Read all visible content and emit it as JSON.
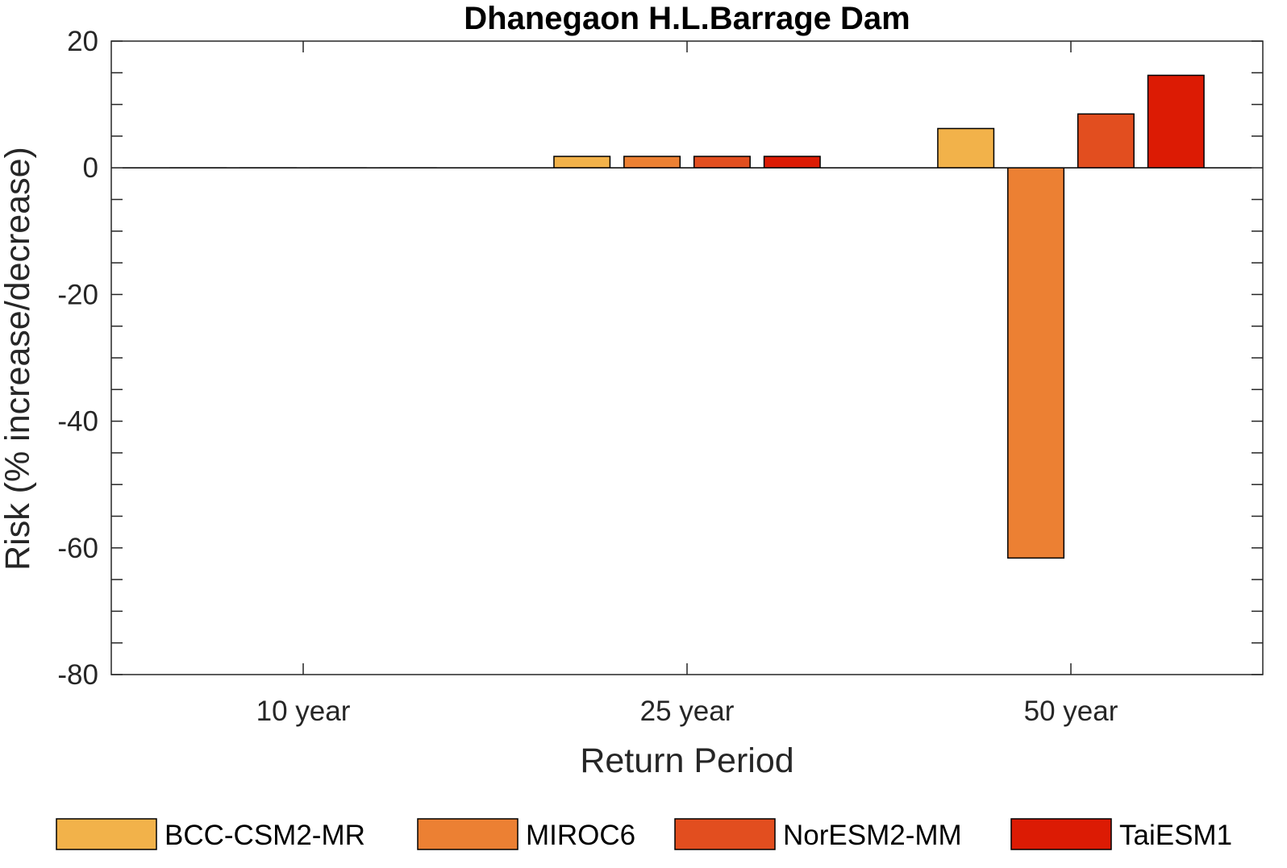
{
  "chart_data": {
    "type": "bar",
    "title": "Dhanegaon H.L.Barrage Dam",
    "xlabel": "Return Period",
    "ylabel": "Risk (% increase/decrease)",
    "categories": [
      "10 year",
      "25 year",
      "50 year"
    ],
    "ylim": [
      -80,
      20
    ],
    "yticks": [
      20,
      0,
      -20,
      -40,
      -60,
      -80
    ],
    "grid": false,
    "legend_position": "bottom",
    "series": [
      {
        "name": "BCC-CSM2-MR",
        "color": "#f2b24a",
        "values": [
          0,
          1.8,
          6.2
        ]
      },
      {
        "name": "MIROC6",
        "color": "#ec8033",
        "values": [
          0,
          1.8,
          -61.6
        ]
      },
      {
        "name": "NorESM2-MM",
        "color": "#e24e1f",
        "values": [
          0,
          1.8,
          8.5
        ]
      },
      {
        "name": "TaiESM1",
        "color": "#dc1b04",
        "values": [
          0,
          1.8,
          14.6
        ]
      }
    ]
  }
}
